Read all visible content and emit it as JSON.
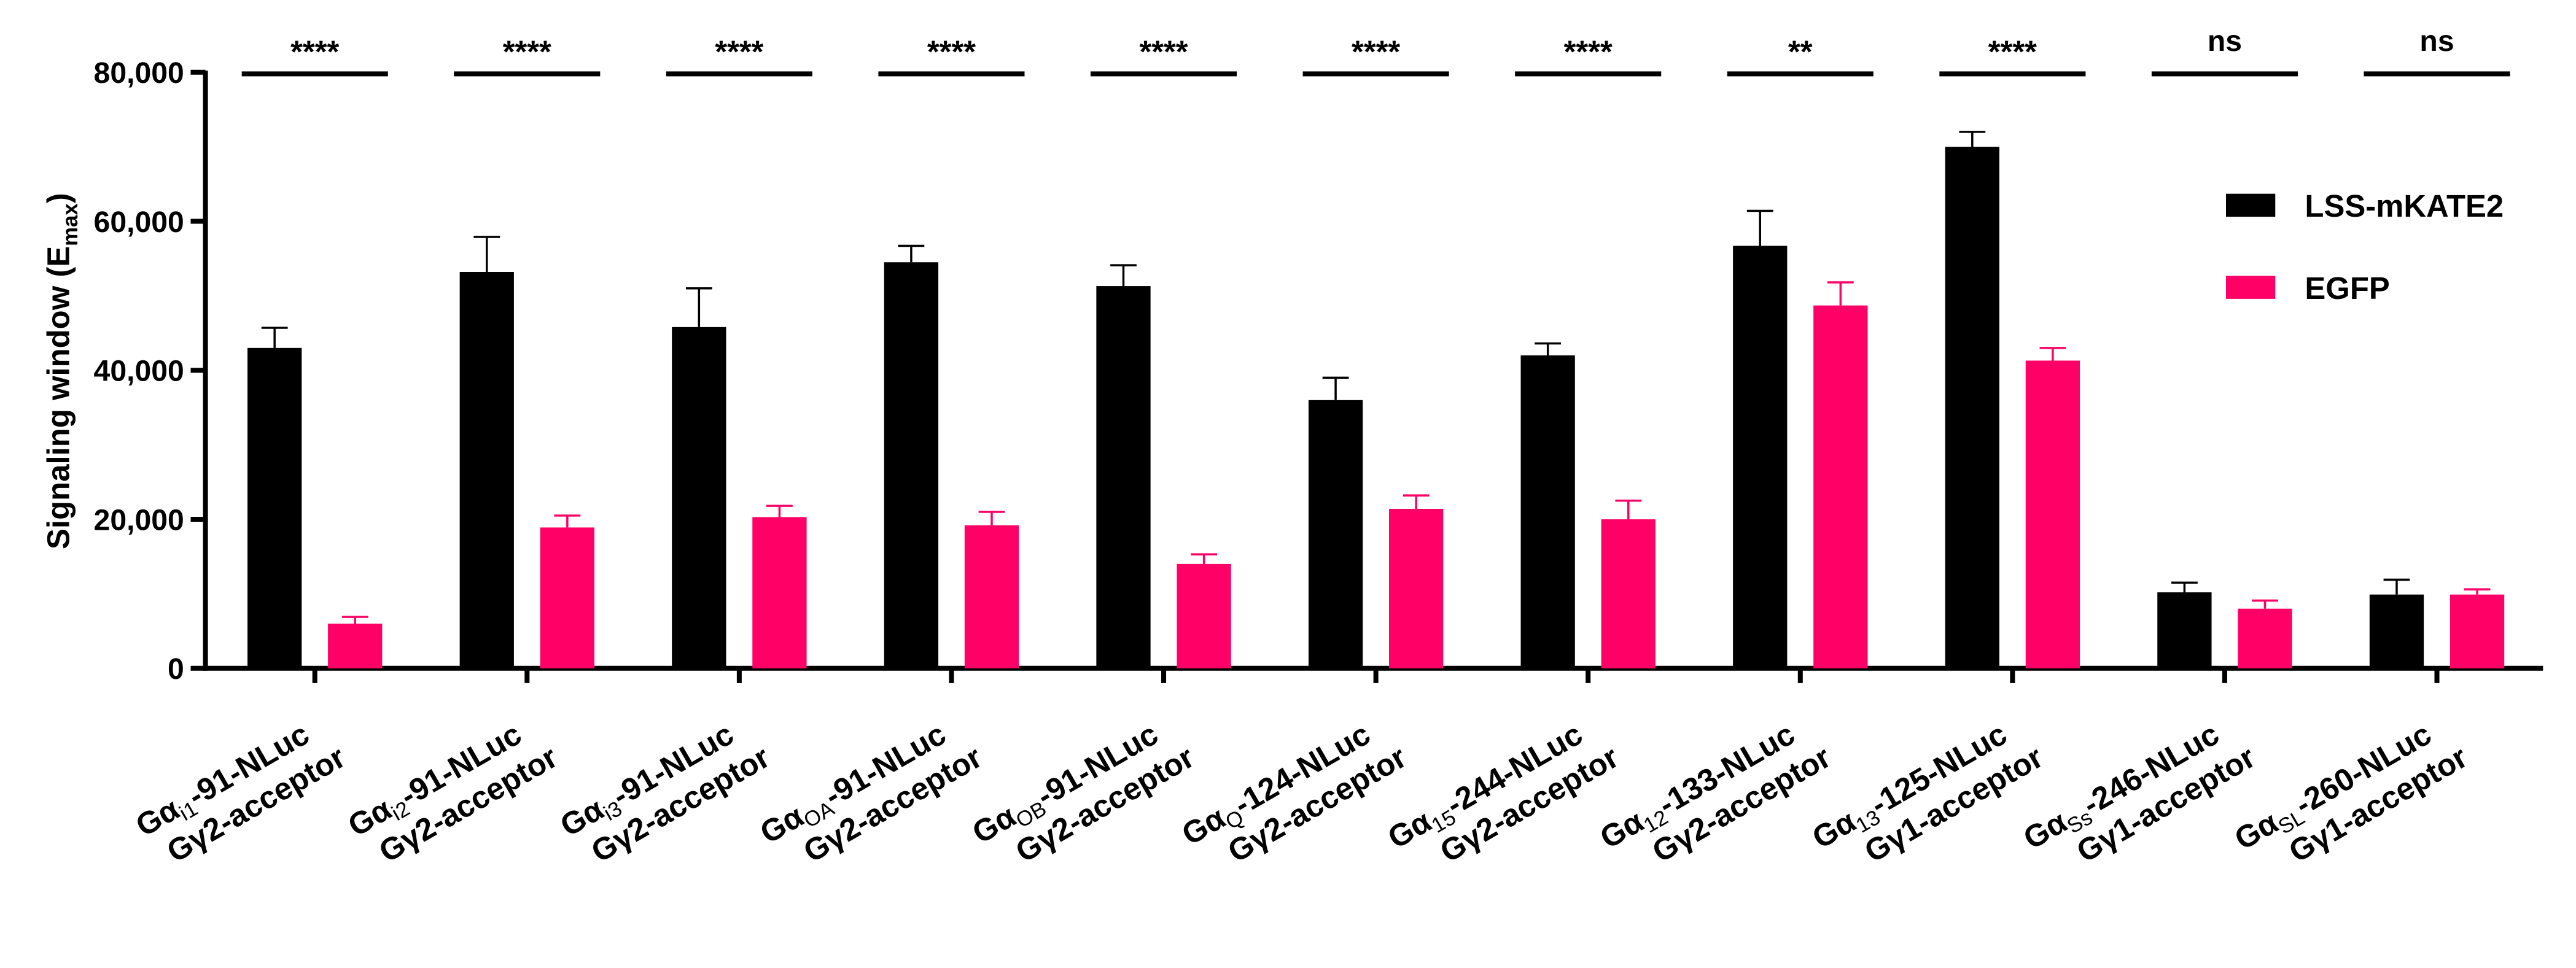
{
  "chart_data": {
    "type": "bar",
    "y_label": {
      "text": "Signaling window (E",
      "sub": "max",
      "end": ")"
    },
    "categories": [
      {
        "prefix": "Gα",
        "sub": "i1",
        "suffix": "-91-NLuc",
        "line2": "Gγ2-acceptor"
      },
      {
        "prefix": "Gα",
        "sub": "i2",
        "suffix": "-91-NLuc",
        "line2": "Gγ2-acceptor"
      },
      {
        "prefix": "Gα",
        "sub": "i3",
        "suffix": "-91-NLuc",
        "line2": "Gγ2-acceptor"
      },
      {
        "prefix": "Gα",
        "sub": "OA",
        "suffix": "-91-NLuc",
        "line2": "Gγ2-acceptor"
      },
      {
        "prefix": "Gα",
        "sub": "OB",
        "suffix": "-91-NLuc",
        "line2": "Gγ2-acceptor"
      },
      {
        "prefix": "Gα",
        "sub": "Q",
        "suffix": "-124-NLuc",
        "line2": "Gγ2-acceptor"
      },
      {
        "prefix": "Gα",
        "sub": "15",
        "suffix": "-244-NLuc",
        "line2": "Gγ2-acceptor"
      },
      {
        "prefix": "Gα",
        "sub": "12",
        "suffix": "-133-NLuc",
        "line2": "Gγ2-acceptor"
      },
      {
        "prefix": "Gα",
        "sub": "13",
        "suffix": "-125-NLuc",
        "line2": "Gγ1-acceptor"
      },
      {
        "prefix": "Gα",
        "sub": "Ss",
        "suffix": "-246-NLuc",
        "line2": "Gγ1-acceptor"
      },
      {
        "prefix": "Gα",
        "sub": "SL",
        "suffix": "-260-NLuc",
        "line2": "Gγ1-acceptor"
      }
    ],
    "series": [
      {
        "name": "LSS-mKATE2",
        "color": "#000000",
        "values": [
          43000,
          53200,
          45800,
          54500,
          51300,
          36000,
          42000,
          56700,
          70000,
          10200,
          9900
        ],
        "errors": [
          2700,
          4700,
          5200,
          2200,
          2800,
          3000,
          1600,
          4700,
          2000,
          1300,
          2000
        ]
      },
      {
        "name": "EGFP",
        "color": "#ff0066",
        "values": [
          6000,
          18900,
          20300,
          19200,
          14000,
          21400,
          20000,
          48700,
          41300,
          8000,
          9900
        ],
        "errors": [
          900,
          1600,
          1500,
          1800,
          1300,
          1800,
          2500,
          3100,
          1700,
          1100,
          700
        ]
      }
    ],
    "significance": [
      "****",
      "****",
      "****",
      "****",
      "****",
      "****",
      "****",
      "**",
      "****",
      "ns",
      "ns"
    ],
    "ylim": [
      0,
      80000
    ],
    "yticks": [
      0,
      {
        "value": 20000,
        "label": "20,000"
      },
      {
        "value": 40000,
        "label": "40,000"
      },
      {
        "value": 60000,
        "label": "60,000"
      },
      {
        "value": 80000,
        "label": "80,000"
      }
    ],
    "legend": "upper right"
  }
}
